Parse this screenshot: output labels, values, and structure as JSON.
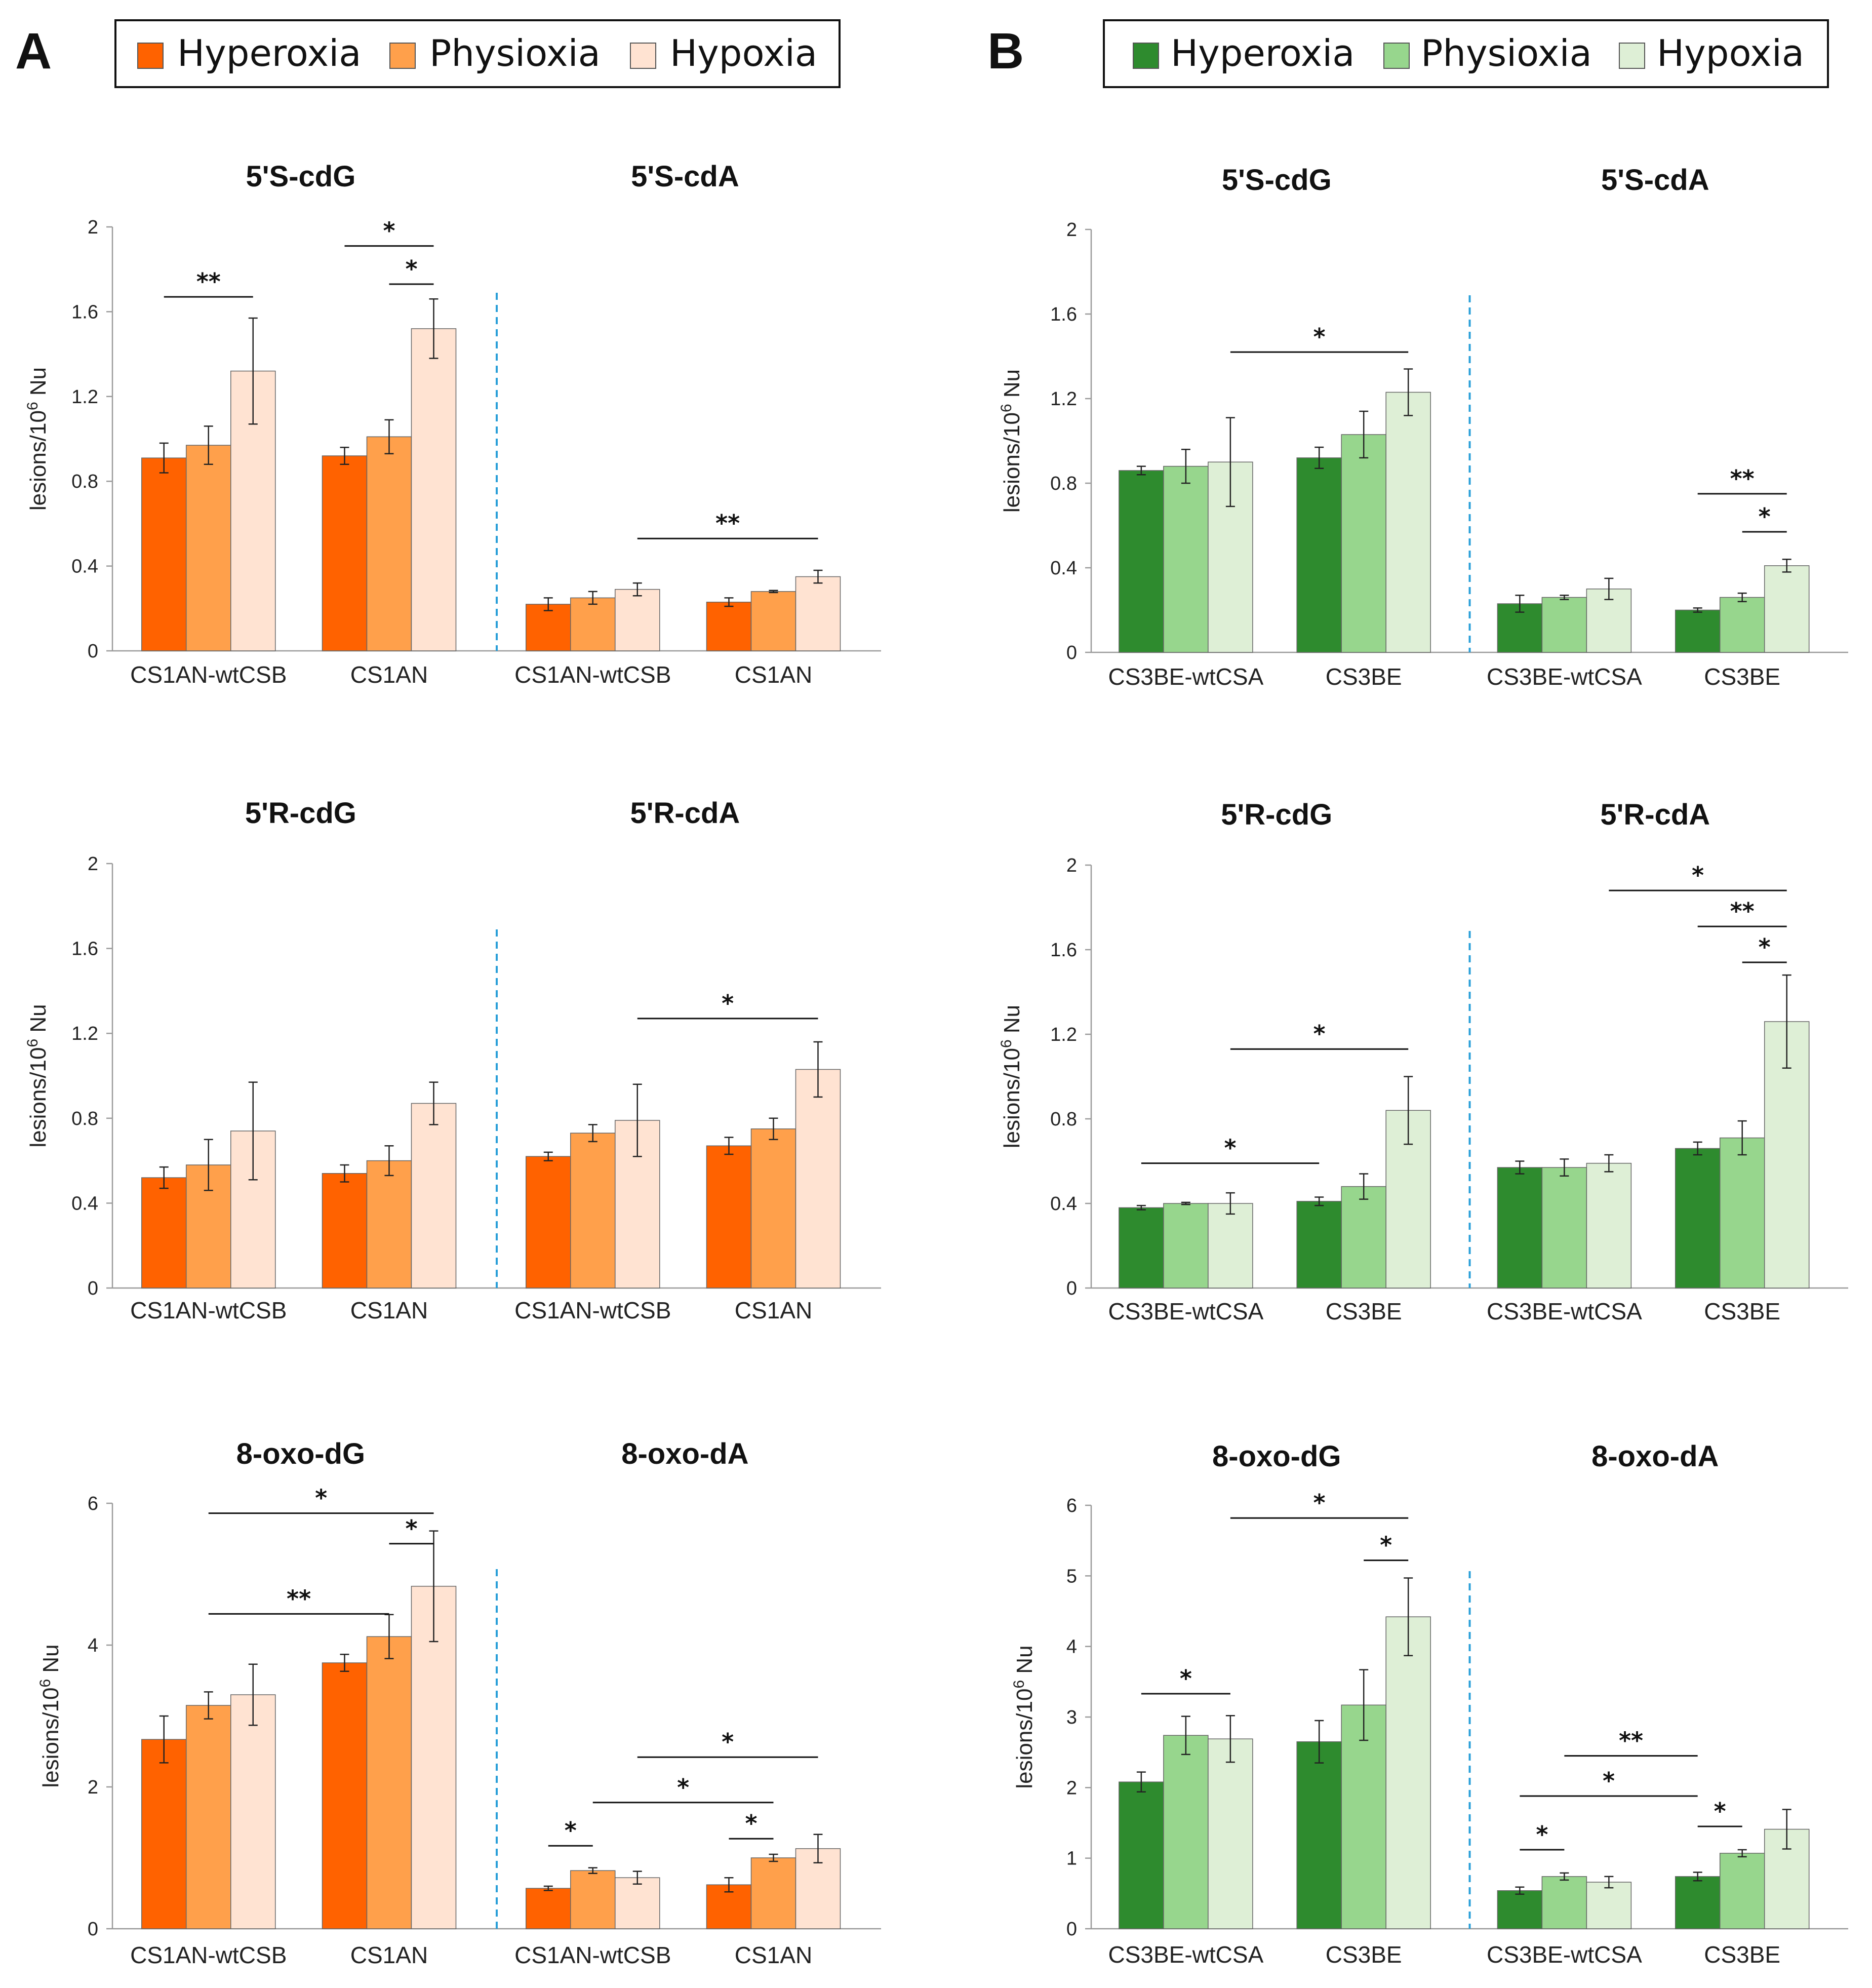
{
  "panels": [
    {
      "letter": "A",
      "legend": [
        {
          "label": "Hyperoxia",
          "color": "#ff6200"
        },
        {
          "label": "Physioxia",
          "color": "#ffa04b"
        },
        {
          "label": "Hypoxia",
          "color": "#ffe3d2"
        }
      ]
    },
    {
      "letter": "B",
      "legend": [
        {
          "label": "Hyperoxia",
          "color": "#2e8b2e"
        },
        {
          "label": "Physioxia",
          "color": "#97d68d"
        },
        {
          "label": "Hypoxia",
          "color": "#deefd6"
        }
      ]
    }
  ],
  "y_label": {
    "main": "lesions/10",
    "sup": "6",
    "tail": " Nu"
  },
  "chart_data": [
    {
      "type": "bar",
      "panel": "A",
      "row": 0,
      "ylim": [
        0,
        2
      ],
      "yticks": [
        0,
        0.4,
        0.8,
        1.2,
        1.6,
        2
      ],
      "ytick_labels": [
        "0",
        "0.4",
        "0.8",
        "1.2",
        "1.6",
        "2"
      ],
      "groups": [
        {
          "title": "5'S-cdG",
          "categories": [
            {
              "label": "CS1AN-wtCSB",
              "values": [
                0.91,
                0.97,
                1.32
              ],
              "errors": [
                0.07,
                0.09,
                0.25
              ]
            },
            {
              "label": "CS1AN",
              "values": [
                0.92,
                1.01,
                1.52
              ],
              "errors": [
                0.04,
                0.08,
                0.14
              ]
            }
          ],
          "sig": [
            {
              "text": "**",
              "from": [
                0,
                0
              ],
              "to": [
                0,
                2
              ],
              "y": 1.67
            },
            {
              "text": "*",
              "from": [
                1,
                0
              ],
              "to": [
                1,
                2
              ],
              "y": 1.91
            },
            {
              "text": "*",
              "from": [
                1,
                1
              ],
              "to": [
                1,
                2
              ],
              "y": 1.73
            }
          ]
        },
        {
          "title": "5'S-cdA",
          "categories": [
            {
              "label": "CS1AN-wtCSB",
              "values": [
                0.22,
                0.25,
                0.29
              ],
              "errors": [
                0.03,
                0.03,
                0.03
              ]
            },
            {
              "label": "CS1AN",
              "values": [
                0.23,
                0.28,
                0.35
              ],
              "errors": [
                0.02,
                0.005,
                0.03
              ]
            }
          ],
          "sig": [
            {
              "text": "**",
              "from": [
                0,
                2
              ],
              "to": [
                1,
                2
              ],
              "y": 0.53
            }
          ]
        }
      ]
    },
    {
      "type": "bar",
      "panel": "A",
      "row": 1,
      "ylim": [
        0,
        2
      ],
      "yticks": [
        0,
        0.4,
        0.8,
        1.2,
        1.6,
        2
      ],
      "ytick_labels": [
        "0",
        "0.4",
        "0.8",
        "1.2",
        "1.6",
        "2"
      ],
      "groups": [
        {
          "title": "5'R-cdG",
          "categories": [
            {
              "label": "CS1AN-wtCSB",
              "values": [
                0.52,
                0.58,
                0.74
              ],
              "errors": [
                0.05,
                0.12,
                0.23
              ]
            },
            {
              "label": "CS1AN",
              "values": [
                0.54,
                0.6,
                0.87
              ],
              "errors": [
                0.04,
                0.07,
                0.1
              ]
            }
          ],
          "sig": []
        },
        {
          "title": "5'R-cdA",
          "categories": [
            {
              "label": "CS1AN-wtCSB",
              "values": [
                0.62,
                0.73,
                0.79
              ],
              "errors": [
                0.02,
                0.04,
                0.17
              ]
            },
            {
              "label": "CS1AN",
              "values": [
                0.67,
                0.75,
                1.03
              ],
              "errors": [
                0.04,
                0.05,
                0.13
              ]
            }
          ],
          "sig": [
            {
              "text": "*",
              "from": [
                0,
                2
              ],
              "to": [
                1,
                2
              ],
              "y": 1.27
            }
          ]
        }
      ]
    },
    {
      "type": "bar",
      "panel": "A",
      "row": 2,
      "ylim": [
        0,
        6
      ],
      "yticks": [
        0,
        2,
        4,
        6
      ],
      "ytick_labels": [
        "0",
        "2",
        "4",
        "6"
      ],
      "groups": [
        {
          "title": "8-oxo-dG",
          "categories": [
            {
              "label": "CS1AN-wtCSB",
              "values": [
                2.67,
                3.15,
                3.3
              ],
              "errors": [
                0.33,
                0.19,
                0.43
              ]
            },
            {
              "label": "CS1AN",
              "values": [
                3.75,
                4.12,
                4.83
              ],
              "errors": [
                0.12,
                0.31,
                0.78
              ]
            }
          ],
          "sig": [
            {
              "text": "*",
              "from": [
                0,
                1
              ],
              "to": [
                1,
                2
              ],
              "y": 5.86
            },
            {
              "text": "*",
              "from": [
                1,
                1
              ],
              "to": [
                1,
                2
              ],
              "y": 5.43
            },
            {
              "text": "**",
              "from": [
                0,
                1
              ],
              "to": [
                1,
                1
              ],
              "y": 4.44
            }
          ]
        },
        {
          "title": "8-oxo-dA",
          "categories": [
            {
              "label": "CS1AN-wtCSB",
              "values": [
                0.57,
                0.82,
                0.72
              ],
              "errors": [
                0.03,
                0.04,
                0.09
              ]
            },
            {
              "label": "CS1AN",
              "values": [
                0.62,
                1.0,
                1.13
              ],
              "errors": [
                0.1,
                0.05,
                0.2
              ]
            }
          ],
          "sig": [
            {
              "text": "*",
              "from": [
                0,
                2
              ],
              "to": [
                1,
                2
              ],
              "y": 2.42
            },
            {
              "text": "*",
              "from": [
                0,
                1
              ],
              "to": [
                1,
                1
              ],
              "y": 1.78
            },
            {
              "text": "*",
              "from": [
                0,
                0
              ],
              "to": [
                0,
                1
              ],
              "y": 1.17
            },
            {
              "text": "*",
              "from": [
                1,
                0
              ],
              "to": [
                1,
                1
              ],
              "y": 1.27
            }
          ]
        }
      ]
    },
    {
      "type": "bar",
      "panel": "B",
      "row": 0,
      "ylim": [
        0,
        2
      ],
      "yticks": [
        0,
        0.4,
        0.8,
        1.2,
        1.6,
        2
      ],
      "ytick_labels": [
        "0",
        "0.4",
        "0.8",
        "1.2",
        "1.6",
        "2"
      ],
      "groups": [
        {
          "title": "5'S-cdG",
          "categories": [
            {
              "label": "CS3BE-wtCSA",
              "values": [
                0.86,
                0.88,
                0.9
              ],
              "errors": [
                0.02,
                0.08,
                0.21
              ]
            },
            {
              "label": "CS3BE",
              "values": [
                0.92,
                1.03,
                1.23
              ],
              "errors": [
                0.05,
                0.11,
                0.11
              ]
            }
          ],
          "sig": [
            {
              "text": "*",
              "from": [
                0,
                2
              ],
              "to": [
                1,
                2
              ],
              "y": 1.42
            }
          ]
        },
        {
          "title": "5'S-cdA",
          "categories": [
            {
              "label": "CS3BE-wtCSA",
              "values": [
                0.23,
                0.26,
                0.3
              ],
              "errors": [
                0.04,
                0.01,
                0.05
              ]
            },
            {
              "label": "CS3BE",
              "values": [
                0.2,
                0.26,
                0.41
              ],
              "errors": [
                0.01,
                0.02,
                0.03
              ]
            }
          ],
          "sig": [
            {
              "text": "**",
              "from": [
                1,
                0
              ],
              "to": [
                1,
                2
              ],
              "y": 0.75
            },
            {
              "text": "*",
              "from": [
                1,
                1
              ],
              "to": [
                1,
                2
              ],
              "y": 0.57
            }
          ]
        }
      ]
    },
    {
      "type": "bar",
      "panel": "B",
      "row": 1,
      "ylim": [
        0,
        2
      ],
      "yticks": [
        0,
        0.4,
        0.8,
        1.2,
        1.6,
        2
      ],
      "ytick_labels": [
        "0",
        "0.4",
        "0.8",
        "1.2",
        "1.6",
        "2"
      ],
      "groups": [
        {
          "title": "5'R-cdG",
          "categories": [
            {
              "label": "CS3BE-wtCSA",
              "values": [
                0.38,
                0.4,
                0.4
              ],
              "errors": [
                0.01,
                0.005,
                0.05
              ]
            },
            {
              "label": "CS3BE",
              "values": [
                0.41,
                0.48,
                0.84
              ],
              "errors": [
                0.02,
                0.06,
                0.16
              ]
            }
          ],
          "sig": [
            {
              "text": "*",
              "from": [
                0,
                2
              ],
              "to": [
                1,
                2
              ],
              "y": 1.13
            },
            {
              "text": "*",
              "from": [
                0,
                0
              ],
              "to": [
                1,
                0
              ],
              "y": 0.59
            }
          ]
        },
        {
          "title": "5'R-cdA",
          "categories": [
            {
              "label": "CS3BE-wtCSA",
              "values": [
                0.57,
                0.57,
                0.59
              ],
              "errors": [
                0.03,
                0.04,
                0.04
              ]
            },
            {
              "label": "CS3BE",
              "values": [
                0.66,
                0.71,
                1.26
              ],
              "errors": [
                0.03,
                0.08,
                0.22
              ]
            }
          ],
          "sig": [
            {
              "text": "*",
              "from": [
                0,
                2
              ],
              "to": [
                1,
                2
              ],
              "y": 1.88
            },
            {
              "text": "**",
              "from": [
                1,
                0
              ],
              "to": [
                1,
                2
              ],
              "y": 1.71
            },
            {
              "text": "*",
              "from": [
                1,
                1
              ],
              "to": [
                1,
                2
              ],
              "y": 1.54
            }
          ]
        }
      ]
    },
    {
      "type": "bar",
      "panel": "B",
      "row": 2,
      "ylim": [
        0,
        6
      ],
      "yticks": [
        0,
        1,
        2,
        3,
        4,
        5,
        6
      ],
      "ytick_labels": [
        "0",
        "1",
        "2",
        "3",
        "4",
        "5",
        "6"
      ],
      "groups": [
        {
          "title": "8-oxo-dG",
          "categories": [
            {
              "label": "CS3BE-wtCSA",
              "values": [
                2.08,
                2.74,
                2.69
              ],
              "errors": [
                0.14,
                0.27,
                0.33
              ]
            },
            {
              "label": "CS3BE",
              "values": [
                2.65,
                3.17,
                4.42
              ],
              "errors": [
                0.3,
                0.5,
                0.55
              ]
            }
          ],
          "sig": [
            {
              "text": "*",
              "from": [
                0,
                2
              ],
              "to": [
                1,
                2
              ],
              "y": 5.82
            },
            {
              "text": "*",
              "from": [
                1,
                1
              ],
              "to": [
                1,
                2
              ],
              "y": 5.22
            },
            {
              "text": "*",
              "from": [
                0,
                0
              ],
              "to": [
                0,
                2
              ],
              "y": 3.33
            }
          ]
        },
        {
          "title": "8-oxo-dA",
          "categories": [
            {
              "label": "CS3BE-wtCSA",
              "values": [
                0.54,
                0.74,
                0.66
              ],
              "errors": [
                0.05,
                0.05,
                0.08
              ]
            },
            {
              "label": "CS3BE",
              "values": [
                0.74,
                1.07,
                1.41
              ],
              "errors": [
                0.06,
                0.05,
                0.28
              ]
            }
          ],
          "sig": [
            {
              "text": "**",
              "from": [
                0,
                1
              ],
              "to": [
                1,
                0
              ],
              "y": 2.45
            },
            {
              "text": "*",
              "from": [
                0,
                0
              ],
              "to": [
                1,
                0
              ],
              "y": 1.88
            },
            {
              "text": "*",
              "from": [
                0,
                0
              ],
              "to": [
                0,
                1
              ],
              "y": 1.12
            },
            {
              "text": "*",
              "from": [
                1,
                0
              ],
              "to": [
                1,
                1
              ],
              "y": 1.45
            }
          ]
        }
      ]
    }
  ]
}
